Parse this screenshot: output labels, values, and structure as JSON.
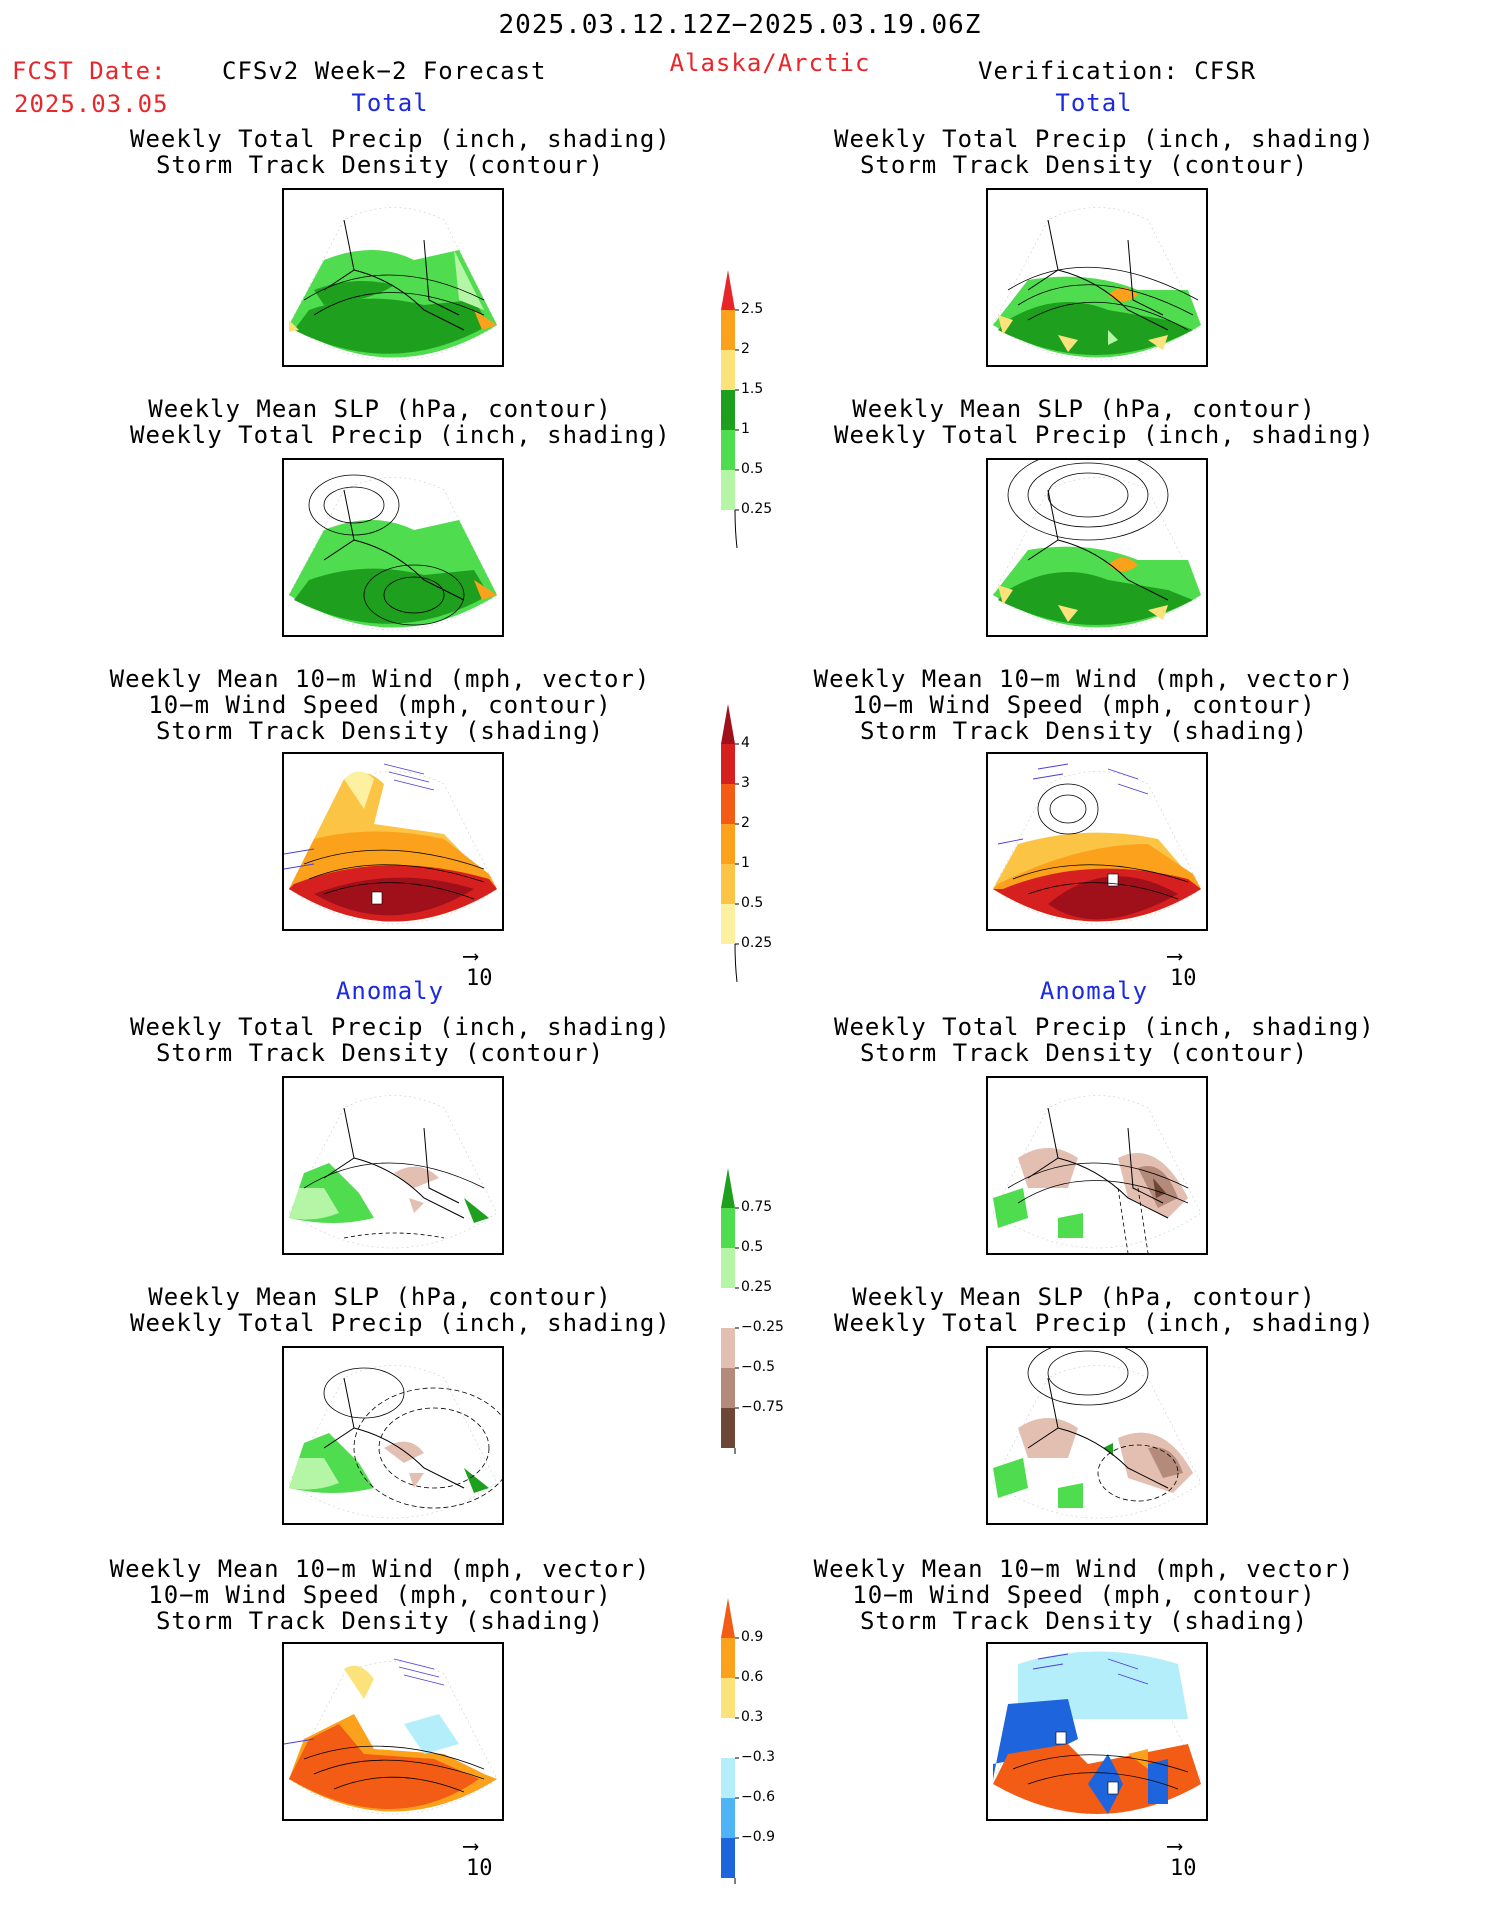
{
  "header": {
    "period": "2025.03.12.12Z−2025.03.19.06Z",
    "fcst_label": "FCST Date:",
    "fcst_date": "2025.03.05",
    "model": "CFSv2 Week−2 Forecast",
    "region": "Alaska/Arctic",
    "verification": "Verification: CFSR"
  },
  "sections": {
    "total": "Total",
    "anomaly": "Anomaly"
  },
  "titles": {
    "precip_storm": [
      "Weekly Total Precip (inch, shading)",
      "Storm Track Density (contour)"
    ],
    "slp_precip": [
      "Weekly Mean SLP (hPa, contour)",
      "Weekly Total Precip (inch, shading)"
    ],
    "wind_storm": [
      "Weekly Mean 10−m Wind (mph, vector)",
      "10−m Wind Speed (mph, contour)",
      "Storm Track Density (shading)"
    ]
  },
  "vector_reference": "10",
  "colorbars": {
    "precip_total": {
      "labels": [
        "2.5",
        "2",
        "1.5",
        "1",
        "0.5",
        "0.25"
      ],
      "colors": [
        "#e8262a",
        "#fba11b",
        "#fbe27b",
        "#1ea01e",
        "#4fdc4f",
        "#b4f5a6"
      ]
    },
    "storm_total": {
      "labels": [
        "4",
        "3",
        "2",
        "1",
        "0.5",
        "0.25"
      ],
      "colors": [
        "#a0101a",
        "#d62020",
        "#f25c14",
        "#fba11b",
        "#fbc445",
        "#fdf0a0"
      ]
    },
    "precip_anom": {
      "labels": [
        "0.75",
        "0.5",
        "0.25",
        "−0.25",
        "−0.5",
        "−0.75"
      ],
      "colors": [
        "#1ea01e",
        "#4fdc4f",
        "#b4f5a6",
        "#ffffff",
        "#e3bfb2",
        "#b48a7a",
        "#6e4636"
      ]
    },
    "storm_anom": {
      "labels": [
        "0.9",
        "0.6",
        "0.3",
        "−0.3",
        "−0.6",
        "−0.9"
      ],
      "colors": [
        "#f25c14",
        "#fba11b",
        "#fbe27b",
        "#ffffff",
        "#b4eefa",
        "#4fb4f5",
        "#1e64dc"
      ]
    }
  }
}
